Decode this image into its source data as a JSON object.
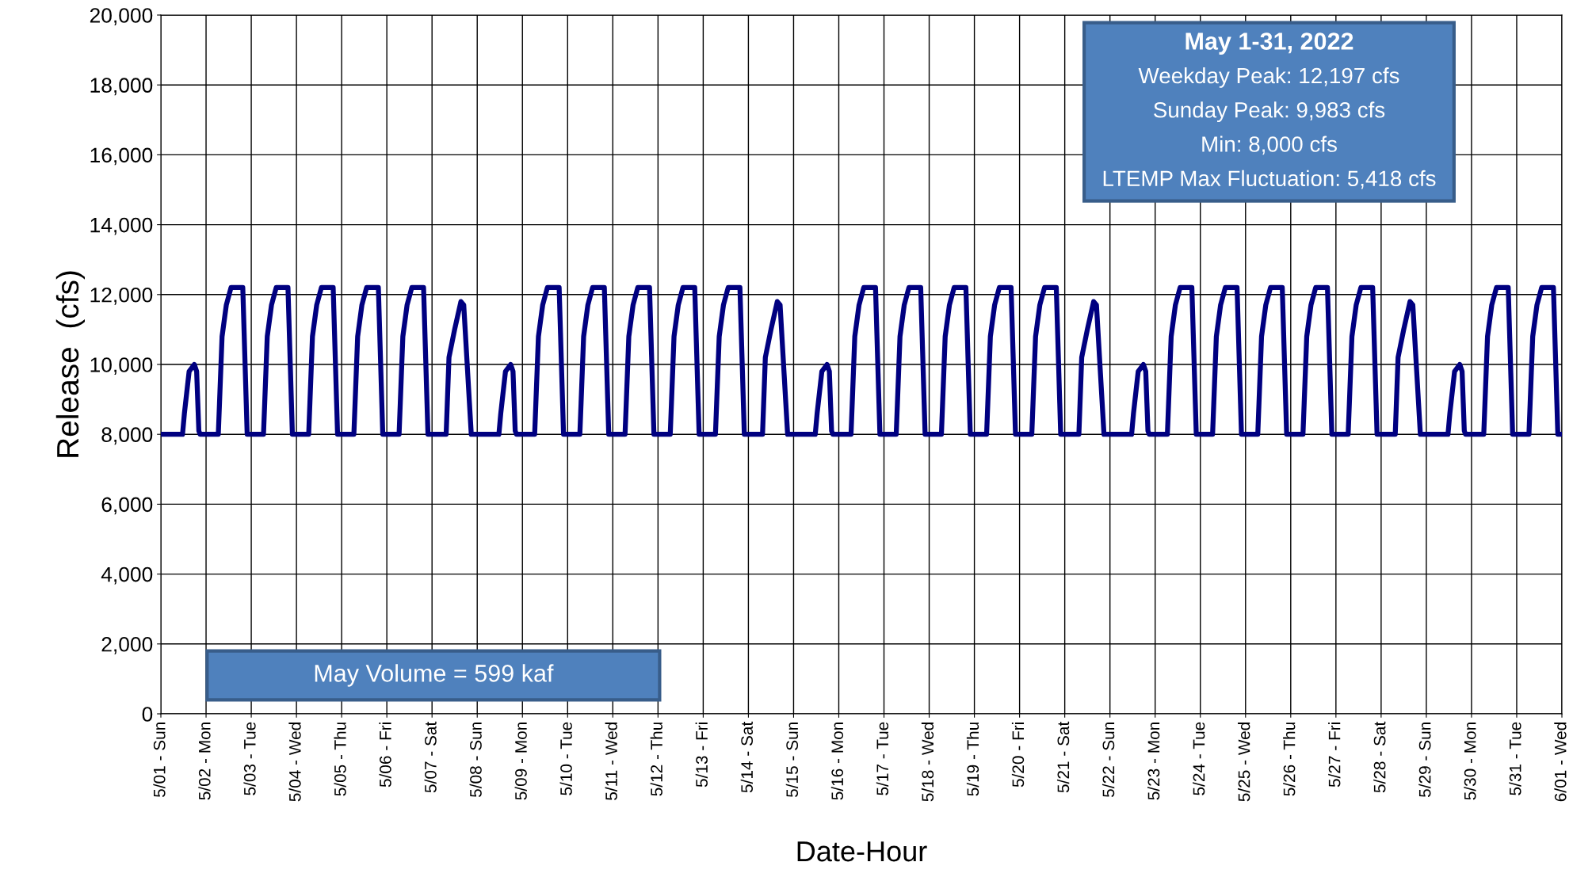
{
  "chart_data": {
    "type": "line",
    "xlabel": "Date-Hour",
    "ylabel": "Release  (cfs)",
    "annotations": [
      "May 1-31, 2022",
      "Weekday Peak: 12,197 cfs",
      "Sunday Peak: 9,983 cfs",
      "Min: 8,000 cfs",
      "LTEMP Max Fluctuation: 5,418 cfs",
      "May Volume = 599 kaf"
    ],
    "series": [
      {
        "color": "#000080",
        "x": [
          "2022-05-01T00:00",
          "2022-05-01T11:30",
          "2022-05-01T12:30",
          "2022-05-01T15:00",
          "2022-05-01T17:45",
          "2022-05-01T19:00",
          "2022-05-01T20:10",
          "2022-05-01T20:50",
          "2022-05-02T06:30",
          "2022-05-02T08:30",
          "2022-05-02T10:45",
          "2022-05-02T13:15",
          "2022-05-02T19:30",
          "2022-05-02T21:50",
          "2022-05-03T06:30",
          "2022-05-03T08:30",
          "2022-05-03T10:45",
          "2022-05-03T13:15",
          "2022-05-03T19:30",
          "2022-05-03T21:50",
          "2022-05-04T06:30",
          "2022-05-04T08:30",
          "2022-05-04T10:45",
          "2022-05-04T13:15",
          "2022-05-04T19:30",
          "2022-05-04T21:50",
          "2022-05-05T06:30",
          "2022-05-05T08:30",
          "2022-05-05T10:45",
          "2022-05-05T13:15",
          "2022-05-05T19:30",
          "2022-05-05T21:50",
          "2022-05-06T06:30",
          "2022-05-06T08:30",
          "2022-05-06T10:45",
          "2022-05-06T13:15",
          "2022-05-06T19:30",
          "2022-05-06T21:50",
          "2022-05-07T07:30",
          "2022-05-07T09:00",
          "2022-05-07T12:00",
          "2022-05-07T15:20",
          "2022-05-07T16:50",
          "2022-05-07T20:50",
          "2022-05-08T11:30",
          "2022-05-08T12:30",
          "2022-05-08T15:00",
          "2022-05-08T17:45",
          "2022-05-08T19:00",
          "2022-05-08T20:10",
          "2022-05-08T20:50",
          "2022-05-09T06:30",
          "2022-05-09T08:30",
          "2022-05-09T10:45",
          "2022-05-09T13:15",
          "2022-05-09T19:30",
          "2022-05-09T21:50",
          "2022-05-10T06:30",
          "2022-05-10T08:30",
          "2022-05-10T10:45",
          "2022-05-10T13:15",
          "2022-05-10T19:30",
          "2022-05-10T21:50",
          "2022-05-11T06:30",
          "2022-05-11T08:30",
          "2022-05-11T10:45",
          "2022-05-11T13:15",
          "2022-05-11T19:30",
          "2022-05-11T21:50",
          "2022-05-12T06:30",
          "2022-05-12T08:30",
          "2022-05-12T10:45",
          "2022-05-12T13:15",
          "2022-05-12T19:30",
          "2022-05-12T21:50",
          "2022-05-13T06:30",
          "2022-05-13T08:30",
          "2022-05-13T10:45",
          "2022-05-13T13:15",
          "2022-05-13T19:30",
          "2022-05-13T21:50",
          "2022-05-14T07:30",
          "2022-05-14T09:00",
          "2022-05-14T12:00",
          "2022-05-14T15:20",
          "2022-05-14T16:50",
          "2022-05-14T20:50",
          "2022-05-15T11:30",
          "2022-05-15T12:30",
          "2022-05-15T15:00",
          "2022-05-15T17:45",
          "2022-05-15T19:00",
          "2022-05-15T20:10",
          "2022-05-15T20:50",
          "2022-05-16T06:30",
          "2022-05-16T08:30",
          "2022-05-16T10:45",
          "2022-05-16T13:15",
          "2022-05-16T19:30",
          "2022-05-16T21:50",
          "2022-05-17T06:30",
          "2022-05-17T08:30",
          "2022-05-17T10:45",
          "2022-05-17T13:15",
          "2022-05-17T19:30",
          "2022-05-17T21:50",
          "2022-05-18T06:30",
          "2022-05-18T08:30",
          "2022-05-18T10:45",
          "2022-05-18T13:15",
          "2022-05-18T19:30",
          "2022-05-18T21:50",
          "2022-05-19T06:30",
          "2022-05-19T08:30",
          "2022-05-19T10:45",
          "2022-05-19T13:15",
          "2022-05-19T19:30",
          "2022-05-19T21:50",
          "2022-05-20T06:30",
          "2022-05-20T08:30",
          "2022-05-20T10:45",
          "2022-05-20T13:15",
          "2022-05-20T19:30",
          "2022-05-20T21:50",
          "2022-05-21T07:30",
          "2022-05-21T09:00",
          "2022-05-21T12:00",
          "2022-05-21T15:20",
          "2022-05-21T16:50",
          "2022-05-21T20:50",
          "2022-05-22T11:30",
          "2022-05-22T12:30",
          "2022-05-22T15:00",
          "2022-05-22T17:45",
          "2022-05-22T19:00",
          "2022-05-22T20:10",
          "2022-05-22T20:50",
          "2022-05-23T06:30",
          "2022-05-23T08:30",
          "2022-05-23T10:45",
          "2022-05-23T13:15",
          "2022-05-23T19:30",
          "2022-05-23T21:50",
          "2022-05-24T06:30",
          "2022-05-24T08:30",
          "2022-05-24T10:45",
          "2022-05-24T13:15",
          "2022-05-24T19:30",
          "2022-05-24T21:50",
          "2022-05-25T06:30",
          "2022-05-25T08:30",
          "2022-05-25T10:45",
          "2022-05-25T13:15",
          "2022-05-25T19:30",
          "2022-05-25T21:50",
          "2022-05-26T06:30",
          "2022-05-26T08:30",
          "2022-05-26T10:45",
          "2022-05-26T13:15",
          "2022-05-26T19:30",
          "2022-05-26T21:50",
          "2022-05-27T06:30",
          "2022-05-27T08:30",
          "2022-05-27T10:45",
          "2022-05-27T13:15",
          "2022-05-27T19:30",
          "2022-05-27T21:50",
          "2022-05-28T07:30",
          "2022-05-28T09:00",
          "2022-05-28T12:00",
          "2022-05-28T15:20",
          "2022-05-28T16:50",
          "2022-05-28T20:50",
          "2022-05-29T11:30",
          "2022-05-29T12:30",
          "2022-05-29T15:00",
          "2022-05-29T17:45",
          "2022-05-29T19:00",
          "2022-05-29T20:10",
          "2022-05-29T20:50",
          "2022-05-30T06:30",
          "2022-05-30T08:30",
          "2022-05-30T10:45",
          "2022-05-30T13:15",
          "2022-05-30T19:30",
          "2022-05-30T21:50",
          "2022-05-31T06:30",
          "2022-05-31T08:30",
          "2022-05-31T10:45",
          "2022-05-31T13:15",
          "2022-05-31T19:30",
          "2022-05-31T21:50",
          "2022-06-01T00:00"
        ],
        "values": [
          8000,
          8000,
          8600,
          9800,
          10000,
          9800,
          8100,
          8000,
          8000,
          10800,
          11700,
          12200,
          12200,
          8000,
          8000,
          10800,
          11700,
          12200,
          12200,
          8000,
          8000,
          10800,
          11700,
          12200,
          12200,
          8000,
          8000,
          10800,
          11700,
          12200,
          12200,
          8000,
          8000,
          10800,
          11700,
          12200,
          12200,
          8000,
          8000,
          10200,
          11000,
          11800,
          11700,
          8000,
          8000,
          8600,
          9800,
          10000,
          9800,
          8100,
          8000,
          8000,
          10800,
          11700,
          12200,
          12200,
          8000,
          8000,
          10800,
          11700,
          12200,
          12200,
          8000,
          8000,
          10800,
          11700,
          12200,
          12200,
          8000,
          8000,
          10800,
          11700,
          12200,
          12200,
          8000,
          8000,
          10800,
          11700,
          12200,
          12200,
          8000,
          8000,
          10200,
          11000,
          11800,
          11700,
          8000,
          8000,
          8600,
          9800,
          10000,
          9800,
          8100,
          8000,
          8000,
          10800,
          11700,
          12200,
          12200,
          8000,
          8000,
          10800,
          11700,
          12200,
          12200,
          8000,
          8000,
          10800,
          11700,
          12200,
          12200,
          8000,
          8000,
          10800,
          11700,
          12200,
          12200,
          8000,
          8000,
          10800,
          11700,
          12200,
          12200,
          8000,
          8000,
          10200,
          11000,
          11800,
          11700,
          8000,
          8000,
          8600,
          9800,
          10000,
          9800,
          8100,
          8000,
          8000,
          10800,
          11700,
          12200,
          12200,
          8000,
          8000,
          10800,
          11700,
          12200,
          12200,
          8000,
          8000,
          10800,
          11700,
          12200,
          12200,
          8000,
          8000,
          10800,
          11700,
          12200,
          12200,
          8000,
          8000,
          10800,
          11700,
          12200,
          12200,
          8000,
          8000,
          10200,
          11000,
          11800,
          11700,
          8000,
          8000,
          8600,
          9800,
          10000,
          9800,
          8100,
          8000,
          8000,
          10800,
          11700,
          12200,
          12200,
          8000,
          8000,
          10800,
          11700,
          12200,
          12200,
          8000,
          8000
        ]
      }
    ],
    "xlim": [
      "2022-05-01",
      "2022-06-01"
    ],
    "xticks": [
      {
        "value": "2022-05-01",
        "label": "5/01 - Sun"
      },
      {
        "value": "2022-05-02",
        "label": "5/02 - Mon"
      },
      {
        "value": "2022-05-03",
        "label": "5/03 - Tue"
      },
      {
        "value": "2022-05-04",
        "label": "5/04 - Wed"
      },
      {
        "value": "2022-05-05",
        "label": "5/05 - Thu"
      },
      {
        "value": "2022-05-06",
        "label": "5/06 - Fri"
      },
      {
        "value": "2022-05-07",
        "label": "5/07 - Sat"
      },
      {
        "value": "2022-05-08",
        "label": "5/08 - Sun"
      },
      {
        "value": "2022-05-09",
        "label": "5/09 - Mon"
      },
      {
        "value": "2022-05-10",
        "label": "5/10 - Tue"
      },
      {
        "value": "2022-05-11",
        "label": "5/11 - Wed"
      },
      {
        "value": "2022-05-12",
        "label": "5/12 - Thu"
      },
      {
        "value": "2022-05-13",
        "label": "5/13 - Fri"
      },
      {
        "value": "2022-05-14",
        "label": "5/14 - Sat"
      },
      {
        "value": "2022-05-15",
        "label": "5/15 - Sun"
      },
      {
        "value": "2022-05-16",
        "label": "5/16 - Mon"
      },
      {
        "value": "2022-05-17",
        "label": "5/17 - Tue"
      },
      {
        "value": "2022-05-18",
        "label": "5/18 - Wed"
      },
      {
        "value": "2022-05-19",
        "label": "5/19 - Thu"
      },
      {
        "value": "2022-05-20",
        "label": "5/20 - Fri"
      },
      {
        "value": "2022-05-21",
        "label": "5/21 - Sat"
      },
      {
        "value": "2022-05-22",
        "label": "5/22 - Sun"
      },
      {
        "value": "2022-05-23",
        "label": "5/23 - Mon"
      },
      {
        "value": "2022-05-24",
        "label": "5/24 - Tue"
      },
      {
        "value": "2022-05-25",
        "label": "5/25 - Wed"
      },
      {
        "value": "2022-05-26",
        "label": "5/26 - Thu"
      },
      {
        "value": "2022-05-27",
        "label": "5/27 - Fri"
      },
      {
        "value": "2022-05-28",
        "label": "5/28 - Sat"
      },
      {
        "value": "2022-05-29",
        "label": "5/29 - Sun"
      },
      {
        "value": "2022-05-30",
        "label": "5/30 - Mon"
      },
      {
        "value": "2022-05-31",
        "label": "5/31 - Tue"
      },
      {
        "value": "2022-06-01",
        "label": "6/01 - Wed"
      }
    ],
    "ylim": [
      0,
      20000
    ],
    "yticks": [
      {
        "value": 0,
        "label": "0"
      },
      {
        "value": 2000,
        "label": "2,000"
      },
      {
        "value": 4000,
        "label": "4,000"
      },
      {
        "value": 6000,
        "label": "6,000"
      },
      {
        "value": 8000,
        "label": "8,000"
      },
      {
        "value": 10000,
        "label": "10,000"
      },
      {
        "value": 12000,
        "label": "12,000"
      },
      {
        "value": 14000,
        "label": "14,000"
      },
      {
        "value": 16000,
        "label": "16,000"
      },
      {
        "value": 18000,
        "label": "18,000"
      },
      {
        "value": 20000,
        "label": "20,000"
      }
    ],
    "grid": true
  }
}
